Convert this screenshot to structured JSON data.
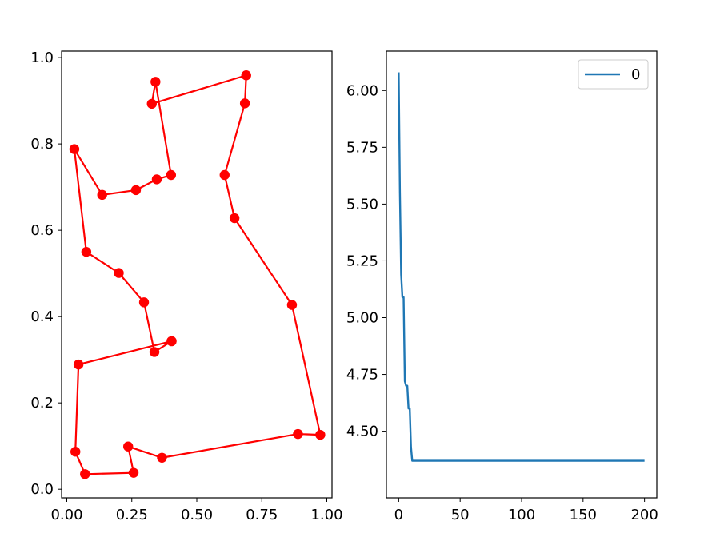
{
  "chart_data": [
    {
      "type": "line",
      "title": "",
      "xlabel": "",
      "ylabel": "",
      "xlim": [
        -0.02,
        1.02
      ],
      "ylim": [
        -0.02,
        1.015
      ],
      "xticks": [
        0.0,
        0.25,
        0.5,
        0.75,
        1.0
      ],
      "xtick_labels": [
        "0.00",
        "0.25",
        "0.50",
        "0.75",
        "1.00"
      ],
      "yticks": [
        0.0,
        0.2,
        0.4,
        0.6,
        0.8,
        1.0
      ],
      "ytick_labels": [
        "0.0",
        "0.2",
        "0.4",
        "0.6",
        "0.8",
        "1.0"
      ],
      "grid": false,
      "colors": {
        "line": "#ff0000",
        "marker": "#ff0000"
      },
      "series": [
        {
          "marker": "circle",
          "x": [
            0.403,
            0.337,
            0.297,
            0.2,
            0.075,
            0.029,
            0.136,
            0.266,
            0.346,
            0.401,
            0.341,
            0.327,
            0.69,
            0.685,
            0.607,
            0.645,
            0.866,
            0.975,
            0.889,
            0.366,
            0.236,
            0.257,
            0.07,
            0.033,
            0.045,
            0.403
          ],
          "y": [
            0.343,
            0.318,
            0.433,
            0.501,
            0.55,
            0.788,
            0.682,
            0.693,
            0.718,
            0.728,
            0.944,
            0.893,
            0.959,
            0.894,
            0.728,
            0.628,
            0.427,
            0.126,
            0.128,
            0.073,
            0.099,
            0.038,
            0.035,
            0.087,
            0.289,
            0.343
          ]
        }
      ]
    },
    {
      "type": "line",
      "title": "",
      "xlabel": "",
      "ylabel": "",
      "xlim": [
        -10,
        210
      ],
      "ylim": [
        4.2065,
        6.1735
      ],
      "xticks": [
        0,
        50,
        100,
        150,
        200
      ],
      "xtick_labels": [
        "0",
        "50",
        "100",
        "150",
        "200"
      ],
      "yticks": [
        4.5,
        4.75,
        5.0,
        5.25,
        5.5,
        5.75,
        6.0
      ],
      "ytick_labels": [
        "4.50",
        "4.75",
        "5.00",
        "5.25",
        "5.50",
        "5.75",
        "6.00"
      ],
      "grid": false,
      "legend": {
        "placement": "top-right",
        "entries": [
          "0"
        ]
      },
      "colors": {
        "line": "#1f77b4"
      },
      "series": [
        {
          "name": "0",
          "x": [
            0,
            1,
            2,
            3,
            4,
            5,
            6,
            7,
            8,
            9,
            10,
            11,
            12,
            200
          ],
          "y": [
            6.08,
            5.55,
            5.19,
            5.09,
            5.09,
            4.72,
            4.7,
            4.7,
            4.6,
            4.6,
            4.43,
            4.37,
            4.37,
            4.37
          ]
        }
      ]
    }
  ]
}
